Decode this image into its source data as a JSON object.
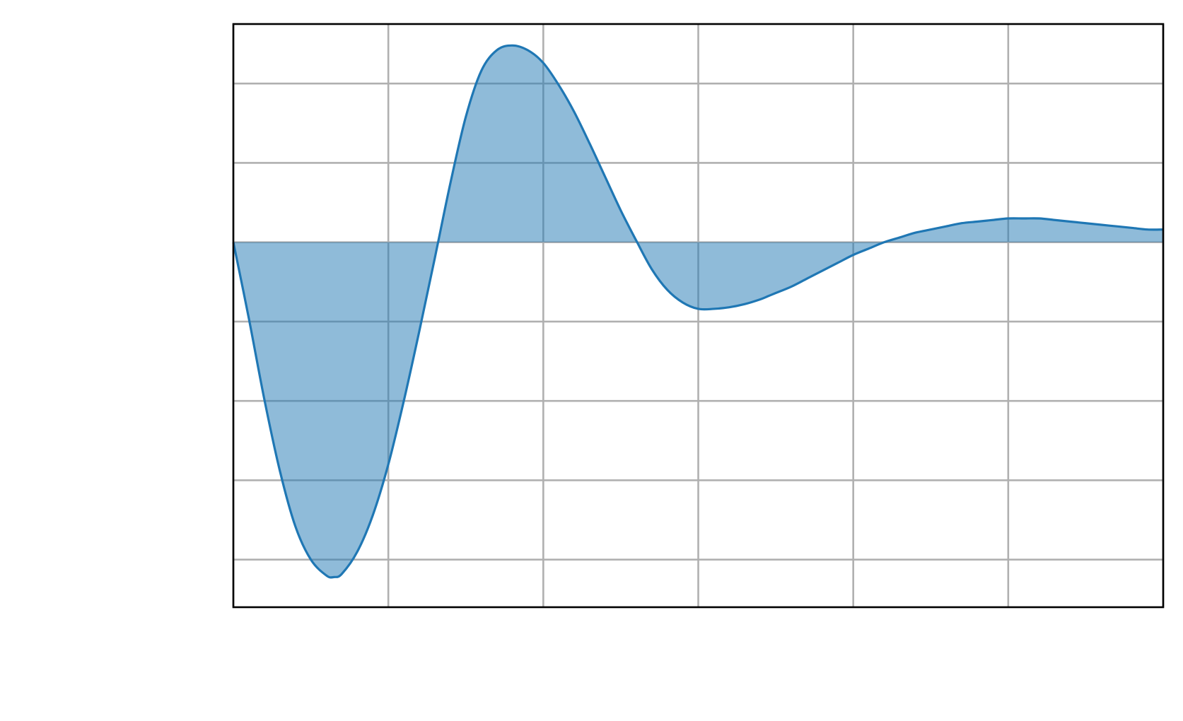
{
  "chart_data": {
    "type": "area",
    "title": "",
    "xlabel": "",
    "ylabel": "",
    "xlim": [
      0,
      6
    ],
    "ylim": [
      -2.3,
      1.375
    ],
    "x_ticks": [
      0,
      1,
      2,
      3,
      4,
      5,
      6
    ],
    "y_ticks": [
      -2.0,
      -1.5,
      -1.0,
      -0.5,
      0.0,
      0.5,
      1.0
    ],
    "x_tick_labels": [],
    "y_tick_labels": [],
    "grid": true,
    "legend": "none",
    "fill_baseline": 0,
    "series": [
      {
        "color": "#1f77b4",
        "fill_color": "#1f77b4",
        "fill_opacity": 0.5,
        "x": [
          0,
          0.1,
          0.2,
          0.3,
          0.4,
          0.5,
          0.6,
          0.65,
          0.7,
          0.8,
          0.9,
          1.0,
          1.1,
          1.2,
          1.3,
          1.4,
          1.5,
          1.6,
          1.7,
          1.8,
          1.9,
          2.0,
          2.1,
          2.2,
          2.3,
          2.4,
          2.5,
          2.6,
          2.7,
          2.8,
          2.9,
          3.0,
          3.1,
          3.2,
          3.3,
          3.4,
          3.45,
          3.5,
          3.6,
          3.7,
          3.8,
          3.9,
          4.0,
          4.1,
          4.2,
          4.3,
          4.4,
          4.5,
          4.6,
          4.7,
          4.8,
          4.9,
          5.0,
          5.1,
          5.2,
          5.3,
          5.4,
          5.5,
          5.6,
          5.7,
          5.8,
          5.9,
          6.0
        ],
        "y": [
          0.0,
          -0.48,
          -0.99,
          -1.44,
          -1.79,
          -2.0,
          -2.1,
          -2.11,
          -2.09,
          -1.95,
          -1.72,
          -1.4,
          -1.0,
          -0.56,
          -0.1,
          0.37,
          0.79,
          1.08,
          1.21,
          1.24,
          1.21,
          1.13,
          0.99,
          0.82,
          0.62,
          0.41,
          0.2,
          0.01,
          -0.17,
          -0.3,
          -0.38,
          -0.42,
          -0.42,
          -0.41,
          -0.39,
          -0.36,
          -0.34,
          -0.32,
          -0.28,
          -0.23,
          -0.18,
          -0.13,
          -0.08,
          -0.04,
          0.0,
          0.03,
          0.06,
          0.08,
          0.1,
          0.12,
          0.13,
          0.14,
          0.15,
          0.15,
          0.15,
          0.14,
          0.13,
          0.12,
          0.11,
          0.1,
          0.09,
          0.08,
          0.08
        ]
      }
    ]
  }
}
